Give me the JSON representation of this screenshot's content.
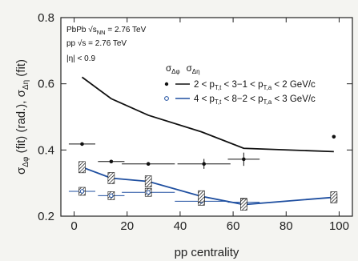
{
  "chart_data": {
    "type": "scatter",
    "xlabel": "pp centrality",
    "ylabel": "σΔφ (fit) (rad.), σΔη (fit)",
    "xlim": [
      -5,
      105
    ],
    "ylim": [
      0.2,
      0.8
    ],
    "x_ticks": [
      0,
      20,
      40,
      60,
      80,
      100
    ],
    "y_ticks": [
      0.2,
      0.4,
      0.6,
      0.8
    ],
    "grid": false,
    "legend_position": "top-right",
    "annotations": [
      "PbPb √s_NN = 2.76 TeV",
      "pp √s = 2.76 TeV",
      "|η| < 0.9"
    ],
    "legend_header": "σΔφ  σΔη",
    "series": [
      {
        "name": "2 < pT,t < 3−1 < pT,a < 2 GeV/c",
        "color": "#111111",
        "sigma_dphi": [
          {
            "x": 3,
            "y": 0.62
          },
          {
            "x": 14,
            "y": 0.555
          },
          {
            "x": 28,
            "y": 0.505
          },
          {
            "x": 48,
            "y": 0.455
          },
          {
            "x": 64,
            "y": 0.405
          },
          {
            "x": 98,
            "y": 0.395
          }
        ],
        "sigma_deta": [
          {
            "x": 3,
            "y": 0.418,
            "xerr": 5,
            "yerr": 0
          },
          {
            "x": 14,
            "y": 0.365,
            "xerr": 5,
            "yerr": 0
          },
          {
            "x": 28,
            "y": 0.358,
            "xerr": 10,
            "yerr": 0
          },
          {
            "x": 49,
            "y": 0.358,
            "xerr": 10,
            "yerr": 0.015
          },
          {
            "x": 64,
            "y": 0.372,
            "xerr": 6,
            "yerr": 0.02
          },
          {
            "x": 98,
            "y": 0.44,
            "xerr": 0,
            "yerr": 0
          }
        ]
      },
      {
        "name": "4 < pT,t < 8−2 < pT,a < 3 GeV/c",
        "color": "#1f4fa0",
        "sigma_dphi": [
          {
            "x": 3,
            "y": 0.348
          },
          {
            "x": 14,
            "y": 0.315
          },
          {
            "x": 28,
            "y": 0.305
          },
          {
            "x": 48,
            "y": 0.26
          },
          {
            "x": 64,
            "y": 0.235
          },
          {
            "x": 98,
            "y": 0.257
          }
        ],
        "sigma_deta": [
          {
            "x": 3,
            "y": 0.275,
            "xerr": 5
          },
          {
            "x": 14,
            "y": 0.262,
            "xerr": 5
          },
          {
            "x": 28,
            "y": 0.272,
            "xerr": 10
          },
          {
            "x": 48,
            "y": 0.245,
            "xerr": 10
          },
          {
            "x": 64,
            "y": 0.242,
            "xerr": 6
          },
          {
            "x": 98,
            "y": 0.255,
            "xerr": 0
          }
        ]
      }
    ]
  }
}
